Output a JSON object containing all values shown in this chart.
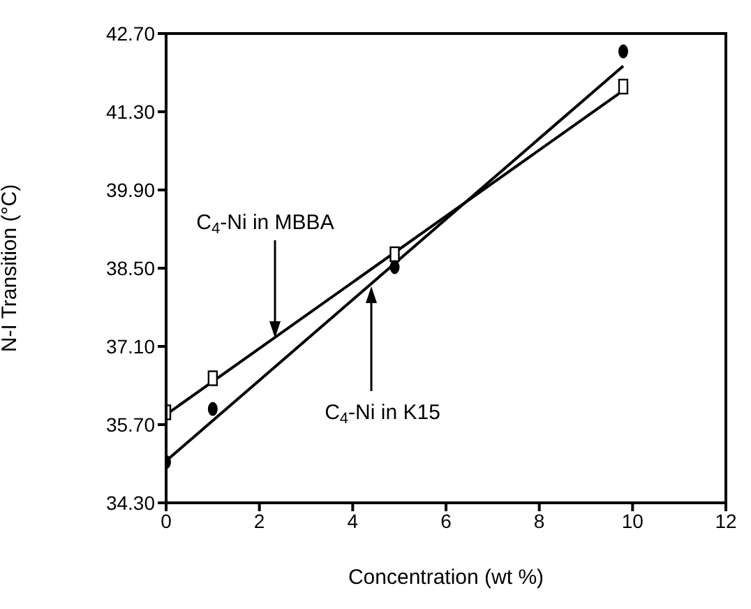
{
  "chart_data": {
    "type": "scatter",
    "xlabel": "Concentration (wt %)",
    "ylabel": "N-I Transition (°C)",
    "xlim": [
      0,
      12
    ],
    "xticks": [
      0,
      2,
      4,
      6,
      8,
      10,
      12
    ],
    "ylim": [
      34.3,
      42.7
    ],
    "yticks": [
      {
        "value": 34.3,
        "label": "34.30"
      },
      {
        "value": 35.7,
        "label": "35.70"
      },
      {
        "value": 37.1,
        "label": "37.10"
      },
      {
        "value": 38.5,
        "label": "38.50"
      },
      {
        "value": 39.9,
        "label": "39.90"
      },
      {
        "value": 41.3,
        "label": "41.30"
      },
      {
        "value": 42.7,
        "label": "42.70"
      }
    ],
    "series": [
      {
        "marker": "square",
        "color": "#000000",
        "x": [
          0,
          1,
          4.9,
          9.8
        ],
        "values": [
          35.92,
          36.53,
          38.75,
          41.75
        ]
      },
      {
        "marker": "circle",
        "color": "#000000",
        "x": [
          0,
          1,
          4.9,
          9.8
        ],
        "values": [
          35.03,
          35.98,
          38.52,
          42.38
        ]
      },
      {
        "type": "line",
        "color": "#000000",
        "x": [
          0,
          9.8
        ],
        "values": [
          35.88,
          41.68
        ]
      },
      {
        "type": "line",
        "color": "#000000",
        "x": [
          0,
          9.8
        ],
        "values": [
          35.05,
          42.12
        ]
      }
    ],
    "annotations": [
      "C$_{4}$-Ni in MBBA",
      "C$_{4}$-Ni in K15"
    ]
  }
}
